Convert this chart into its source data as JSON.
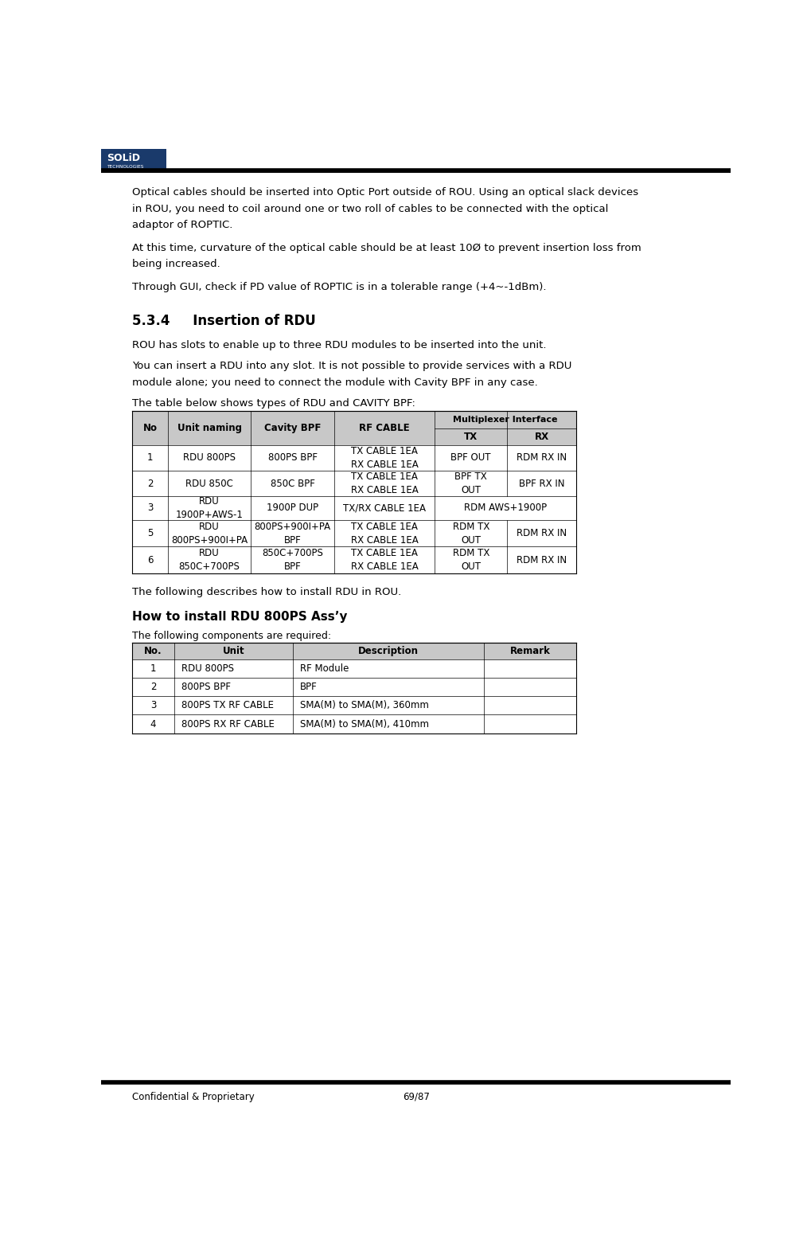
{
  "page_width": 10.2,
  "page_height": 15.62,
  "dpi": 100,
  "bg_color": "#ffffff",
  "logo_bg_color": "#1a3a6b",
  "logo_text_line1": "SOLiD",
  "logo_text_line2": "TECHNOLOGIES",
  "header_line_color": "#000000",
  "footer_line_color": "#000000",
  "footer_text_left": "Confidential & Proprietary",
  "footer_text_right": "69/87",
  "para1_line1": "Optical cables should be inserted into Optic Port outside of ROU. Using an optical slack devices",
  "para1_line2": "in ROU, you need to coil around one or two roll of cables to be connected with the optical",
  "para1_line3": "adaptor of ROPTIC.",
  "para2_line1": "At this time, curvature of the optical cable should be at least 10Ø to prevent insertion loss from",
  "para2_line2": "being increased.",
  "para3": "Through GUI, check if PD value of ROPTIC is in a tolerable range (+4~-1dBm).",
  "section_title": "5.3.4     Insertion of RDU",
  "section_para1": "ROU has slots to enable up to three RDU modules to be inserted into the unit.",
  "section_para2_line1": "You can insert a RDU into any slot. It is not possible to provide services with a RDU",
  "section_para2_line2": "module alone; you need to connect the module with Cavity BPF in any case.",
  "section_para3": "The table below shows types of RDU and CAVITY BPF:",
  "table1_rows": [
    [
      "1",
      "RDU 800PS",
      "800PS BPF",
      "TX CABLE 1EA\nRX CABLE 1EA",
      "BPF OUT",
      "RDM RX IN"
    ],
    [
      "2",
      "RDU 850C",
      "850C BPF",
      "TX CABLE 1EA\nRX CABLE 1EA",
      "BPF TX\nOUT",
      "BPF RX IN"
    ],
    [
      "3",
      "RDU\n1900P+AWS-1",
      "1900P DUP",
      "TX/RX CABLE 1EA",
      "RDM AWS+1900P",
      ""
    ],
    [
      "5",
      "RDU\n800PS+900I+PA",
      "800PS+900I+PA\nBPF",
      "TX CABLE 1EA\nRX CABLE 1EA",
      "RDM TX\nOUT",
      "RDM RX IN"
    ],
    [
      "6",
      "RDU\n850C+700PS",
      "850C+700PS\nBPF",
      "TX CABLE 1EA\nRX CABLE 1EA",
      "RDM TX\nOUT",
      "RDM RX IN"
    ]
  ],
  "after_table_text": "The following describes how to install RDU in ROU.",
  "sub_section_title": "How to install RDU 800PS Ass’y",
  "sub_section_sub": "The following components are required:",
  "table2_headers": [
    "No.",
    "Unit",
    "Description",
    "Remark"
  ],
  "table2_rows": [
    [
      "1",
      "RDU 800PS",
      "RF Module",
      ""
    ],
    [
      "2",
      "800PS BPF",
      "BPF",
      ""
    ],
    [
      "3",
      "800PS TX RF CABLE",
      "SMA(M) to SMA(M), 360mm",
      ""
    ],
    [
      "4",
      "800PS RX RF CABLE",
      "SMA(M) to SMA(M), 410mm",
      ""
    ]
  ],
  "table_header_bg": "#c8c8c8",
  "table_border_color": "#000000",
  "text_color": "#000000",
  "body_font_size": 9.5,
  "section_font_size": 12,
  "subsection_font_size": 11
}
